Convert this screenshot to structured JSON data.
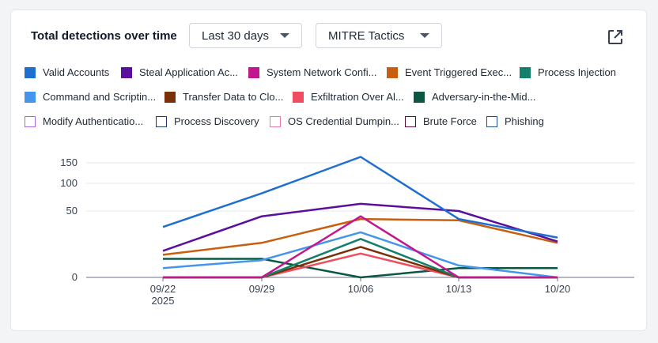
{
  "header": {
    "title": "Total detections over time",
    "range_select": "Last 30 days",
    "group_select": "MITRE Tactics"
  },
  "icons": {
    "external": "external-link-icon",
    "caret": "chevron-down-icon"
  },
  "legend": [
    {
      "label": "Valid Accounts",
      "color": "#1f6fd0",
      "style": "filled"
    },
    {
      "label": "Steal Application Ac...",
      "color": "#5b0f9c",
      "style": "filled"
    },
    {
      "label": "System Network Confi...",
      "color": "#c2188f",
      "style": "filled"
    },
    {
      "label": "Event Triggered Exec...",
      "color": "#c75e10",
      "style": "filled"
    },
    {
      "label": "Process Injection",
      "color": "#13806b",
      "style": "filled"
    },
    {
      "label": "Command and Scriptin...",
      "color": "#4596ea",
      "style": "filled"
    },
    {
      "label": "Transfer Data to Clo...",
      "color": "#7a3107",
      "style": "filled"
    },
    {
      "label": "Exfiltration Over Al...",
      "color": "#ee4e5f",
      "style": "filled"
    },
    {
      "label": "Adversary-in-the-Mid...",
      "color": "#0b5744",
      "style": "filled"
    },
    {
      "label": "Modify Authenticatio...",
      "color": "#a36ae0",
      "style": "outline"
    },
    {
      "label": "Process Discovery",
      "color": "#20386a",
      "style": "outline"
    },
    {
      "label": "OS Credential Dumpin...",
      "color": "#ee77aa",
      "style": "outline"
    },
    {
      "label": "Brute Force",
      "color": "#5c0f3e",
      "style": "outline"
    },
    {
      "label": "Phishing",
      "color": "#1f4c8f",
      "style": "outline"
    }
  ],
  "chart_data": {
    "type": "line",
    "x": [
      "09/22\n2025",
      "09/29",
      "10/06",
      "10/13",
      "10/20"
    ],
    "y_ticks": [
      0,
      50,
      100,
      150
    ],
    "series": [
      {
        "name": "Valid Accounts",
        "color": "#1f6fd0",
        "values": [
          38,
          82,
          160,
          44,
          30
        ]
      },
      {
        "name": "Steal Application Ac...",
        "color": "#5b0f9c",
        "values": [
          20,
          46,
          63,
          50,
          27
        ]
      },
      {
        "name": "System Network Confi...",
        "color": "#c2188f",
        "values": [
          0,
          0,
          46,
          0,
          0
        ]
      },
      {
        "name": "Event Triggered Exec...",
        "color": "#c75e10",
        "values": [
          17,
          26,
          44,
          43,
          26
        ]
      },
      {
        "name": "Process Injection",
        "color": "#13806b",
        "values": [
          0,
          0,
          29,
          0,
          0
        ]
      },
      {
        "name": "Command and Scriptin...",
        "color": "#4596ea",
        "values": [
          7,
          13,
          34,
          9,
          0
        ]
      },
      {
        "name": "Transfer Data to Clo...",
        "color": "#7a3107",
        "values": [
          0,
          0,
          23,
          0,
          0
        ]
      },
      {
        "name": "Exfiltration Over Al...",
        "color": "#ee4e5f",
        "values": [
          0,
          0,
          18,
          0,
          0
        ]
      },
      {
        "name": "Adversary-in-the-Mid...",
        "color": "#0b5744",
        "values": [
          14,
          14,
          0,
          7,
          7
        ]
      }
    ]
  }
}
